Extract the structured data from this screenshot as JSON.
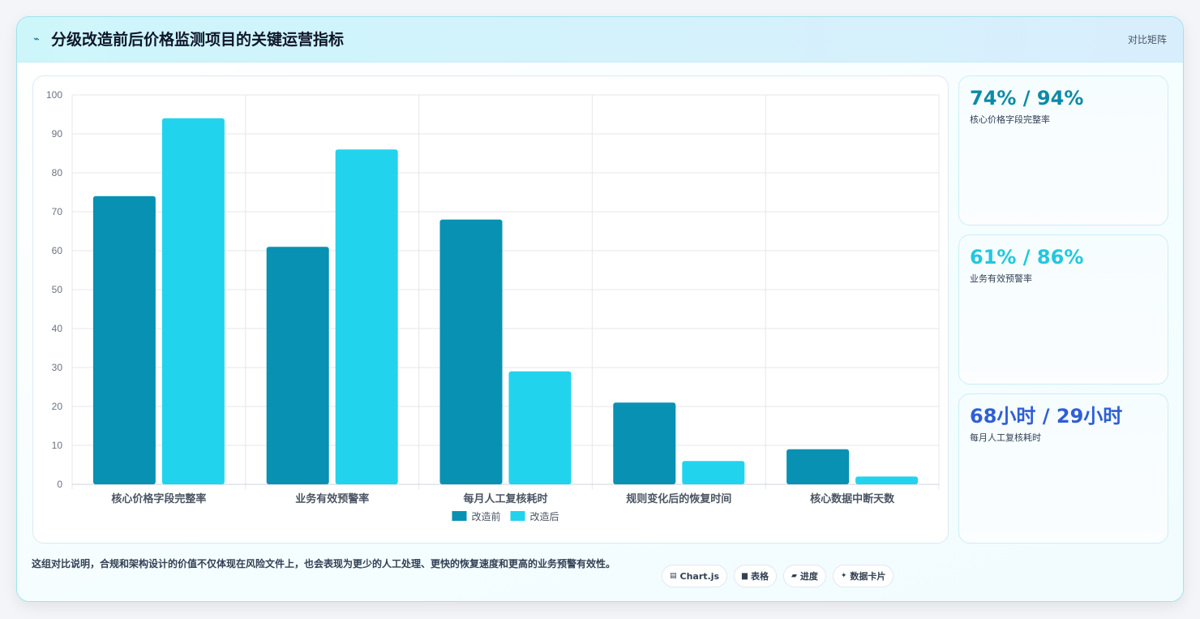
{
  "header": {
    "icon": "spark-icon",
    "title": "分级改造前后价格监测项目的关键运营指标",
    "tag": "对比矩阵"
  },
  "kpis": [
    {
      "value": "74% / 94%",
      "label": "核心价格字段完整率",
      "color": "#0b8aa8"
    },
    {
      "value": "61% / 86%",
      "label": "业务有效预警率",
      "color": "#22c7e0"
    },
    {
      "value": "68小时 / 29小时",
      "label": "每月人工复核耗时",
      "color": "#2f5fd6"
    }
  ],
  "footer": {
    "text": "这组对比说明，合规和架构设计的价值不仅体现在风险文件上，也会表现为更少的人工处理、更快的恢复速度和更高的业务预警有效性。",
    "chips": [
      {
        "icon": "chart-icon",
        "glyph": "▤",
        "label": "Chart.js"
      },
      {
        "icon": "table-icon",
        "glyph": "▆",
        "label": "表格"
      },
      {
        "icon": "progress-icon",
        "glyph": "▰",
        "label": "进度"
      },
      {
        "icon": "data-card-icon",
        "glyph": "✦",
        "label": "数据卡片"
      }
    ]
  },
  "chart_data": {
    "type": "bar",
    "categories": [
      "核心价格字段完整率",
      "业务有效预警率",
      "每月人工复核耗时",
      "规则变化后的恢复时间",
      "核心数据中断天数"
    ],
    "series": [
      {
        "name": "改造前",
        "values": [
          74,
          61,
          68,
          21,
          9
        ],
        "color": "#0891b2"
      },
      {
        "name": "改造后",
        "values": [
          94,
          86,
          29,
          6,
          2
        ],
        "color": "#22d3ee"
      }
    ],
    "ylim": [
      0,
      100
    ],
    "yticks": [
      0,
      10,
      20,
      30,
      40,
      50,
      60,
      70,
      80,
      90,
      100
    ],
    "grid": true,
    "legend": "bottom"
  }
}
